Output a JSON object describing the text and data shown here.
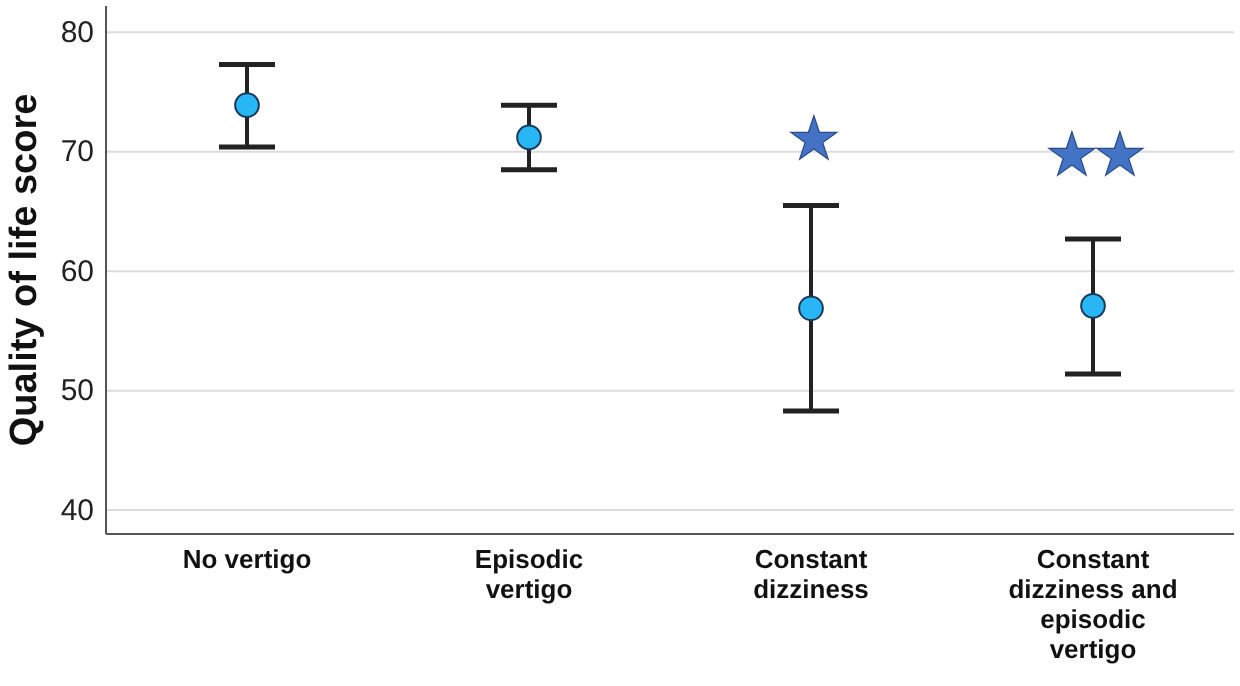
{
  "chart_data": {
    "type": "scatter",
    "ylabel": "Quality of life score",
    "categories": [
      "No vertigo",
      "Episodic vertigo",
      "Constant dizziness",
      "Constant dizziness and episodic vertigo"
    ],
    "series": [
      {
        "color": "#29b6f6",
        "values": [
          73.9,
          71.2,
          56.9,
          57.1
        ],
        "errors": [
          [
            70.4,
            77.3
          ],
          [
            68.5,
            73.9
          ],
          [
            48.3,
            65.5
          ],
          [
            51.4,
            62.7
          ]
        ]
      }
    ],
    "ylim": [
      38,
      82.2
    ],
    "yticks": [
      40,
      50,
      60,
      70,
      80
    ],
    "grid": "y",
    "marker": "circle",
    "annotations": [
      "★",
      "★★"
    ]
  }
}
